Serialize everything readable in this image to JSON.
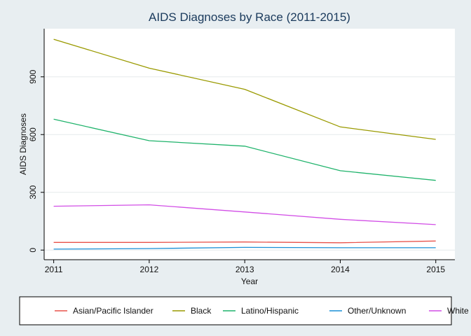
{
  "chart_data": {
    "type": "line",
    "title": "AIDS Diagnoses by Race (2011-2015)",
    "xlabel": "Year",
    "ylabel": "AIDS Diagnoses",
    "x": [
      2011,
      2012,
      2013,
      2014,
      2015
    ],
    "xlim": [
      2010.9,
      2015.2
    ],
    "ylim": [
      -50,
      1150
    ],
    "yticks": [
      0,
      300,
      600,
      900
    ],
    "grid": true,
    "legend_position": "bottom",
    "series": [
      {
        "name": "Asian/Pacific Islander",
        "color": "#e8524a",
        "values": [
          40,
          40,
          42,
          38,
          47
        ]
      },
      {
        "name": "Black",
        "color": "#9a9a00",
        "values": [
          1095,
          945,
          835,
          640,
          575
        ]
      },
      {
        "name": "Latino/Hispanic",
        "color": "#1fb36b",
        "values": [
          680,
          568,
          540,
          412,
          362
        ]
      },
      {
        "name": "Other/Unknown",
        "color": "#1a8fd6",
        "values": [
          5,
          8,
          14,
          12,
          12
        ]
      },
      {
        "name": "White",
        "color": "#d24ee6",
        "values": [
          228,
          235,
          198,
          160,
          132
        ]
      }
    ]
  }
}
